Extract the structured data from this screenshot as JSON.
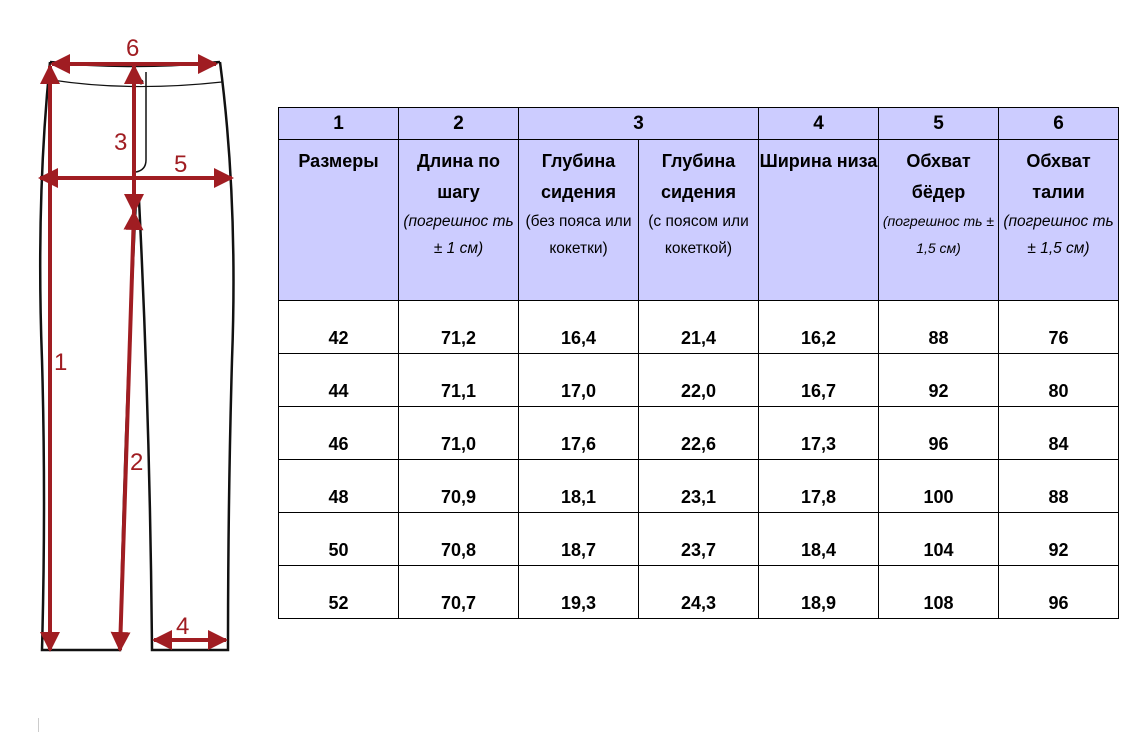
{
  "diagram": {
    "labels": {
      "m1": "1",
      "m2": "2",
      "m3": "3",
      "m4": "4",
      "m5": "5",
      "m6": "6"
    },
    "arrow_color": "#a01d22"
  },
  "table": {
    "column_numbers": [
      "1",
      "2",
      "3",
      "4",
      "5",
      "6"
    ],
    "headers": [
      {
        "title": "Размеры"
      },
      {
        "title": "Длина по шагу",
        "note": "(погрешнос ть ± 1 см)"
      },
      {
        "title": "Глубина сидения",
        "note": "(без пояса или кокетки)"
      },
      {
        "title": "Глубина сидения",
        "note": "(с поясом или кокеткой)"
      },
      {
        "title": "Ширина низа"
      },
      {
        "title": "Обхват бёдер",
        "note": "(погрешнос ть ± 1,5 см)"
      },
      {
        "title": "Обхват талии",
        "note": "(погрешнос ть ± 1,5 см)"
      }
    ],
    "header_bg": "#ccccff",
    "rows": [
      [
        "42",
        "71,2",
        "16,4",
        "21,4",
        "16,2",
        "88",
        "76"
      ],
      [
        "44",
        "71,1",
        "17,0",
        "22,0",
        "16,7",
        "92",
        "80"
      ],
      [
        "46",
        "71,0",
        "17,6",
        "22,6",
        "17,3",
        "96",
        "84"
      ],
      [
        "48",
        "70,9",
        "18,1",
        "23,1",
        "17,8",
        "100",
        "88"
      ],
      [
        "50",
        "70,8",
        "18,7",
        "23,7",
        "18,4",
        "104",
        "92"
      ],
      [
        "52",
        "70,7",
        "19,3",
        "24,3",
        "18,9",
        "108",
        "96"
      ]
    ]
  }
}
